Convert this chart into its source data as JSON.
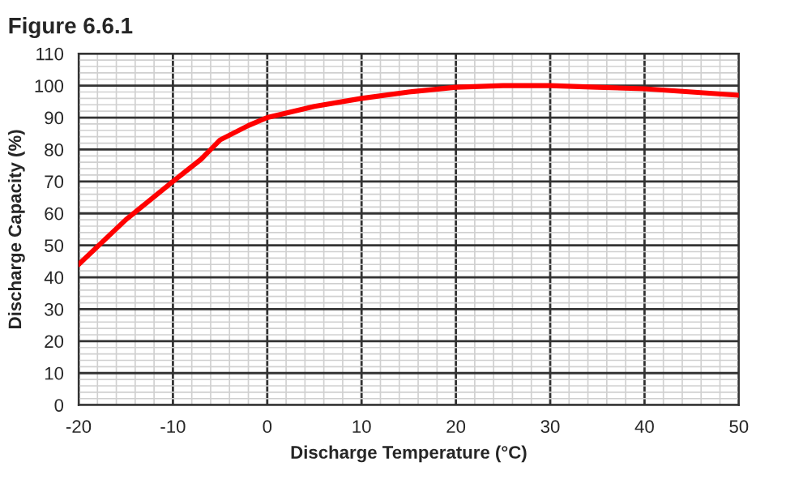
{
  "chart_data": {
    "type": "line",
    "title": "Figure 6.6.1",
    "xlabel": "Discharge Temperature (°C)",
    "ylabel": "Discharge Capacity (%)",
    "x": [
      -20,
      -15,
      -10,
      -7,
      -5,
      -2,
      0,
      5,
      10,
      15,
      20,
      25,
      30,
      35,
      40,
      45,
      50
    ],
    "series": [
      {
        "color": "#ff0000",
        "values": [
          44,
          58,
          70,
          77,
          83,
          87.5,
          90,
          93.5,
          96,
          98,
          99.5,
          100,
          100,
          99.5,
          99,
          98,
          97
        ]
      }
    ],
    "xlim": [
      -20,
      50
    ],
    "xticks": [
      -20,
      -10,
      0,
      10,
      20,
      30,
      40,
      50
    ],
    "ylim": [
      0,
      110
    ],
    "yticks": [
      0,
      10,
      20,
      30,
      40,
      50,
      60,
      70,
      80,
      90,
      100,
      110
    ],
    "grid": true,
    "marker": "none",
    "line_style": "solid"
  }
}
